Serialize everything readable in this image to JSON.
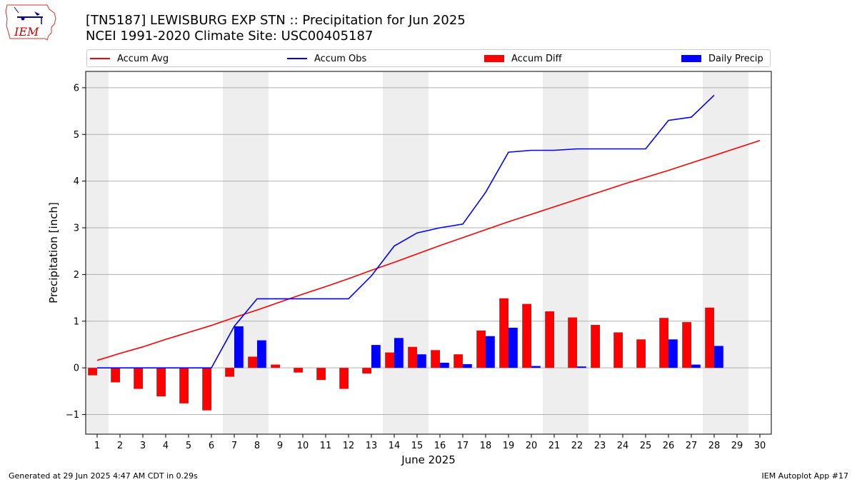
{
  "header": {
    "title_line1": "[TN5187] LEWISBURG EXP STN :: Precipitation for Jun 2025",
    "title_line2": "NCEI 1991-2020 Climate Site: USC00405187"
  },
  "logo": {
    "text": "IEM"
  },
  "footer": {
    "left": "Generated at 29 Jun 2025 4:47 AM CDT in 0.29s",
    "right": "IEM Autoplot App #17"
  },
  "colors": {
    "avg": "#ff0000",
    "obs": "#0000ff",
    "diff": "#ff0000",
    "daily": "#0000ff",
    "weekend_shade": "#eeeeee",
    "grid": "#b0b0b0"
  },
  "chart_data": {
    "type": "bar",
    "xlabel": "June 2025",
    "ylabel": "Precipitation [inch]",
    "ylim": [
      -1.42,
      6.35
    ],
    "xlim": [
      0.5,
      30.5
    ],
    "yticks": [
      -1,
      0,
      1,
      2,
      3,
      4,
      5,
      6
    ],
    "ytick_labels": [
      "−1",
      "0",
      "1",
      "2",
      "3",
      "4",
      "5",
      "6"
    ],
    "days": [
      1,
      2,
      3,
      4,
      5,
      6,
      7,
      8,
      9,
      10,
      11,
      12,
      13,
      14,
      15,
      16,
      17,
      18,
      19,
      20,
      21,
      22,
      23,
      24,
      25,
      26,
      27,
      28,
      29,
      30
    ],
    "shaded_ranges": [
      [
        0.5,
        1.5
      ],
      [
        6.5,
        8.5
      ],
      [
        13.5,
        15.5
      ],
      [
        20.5,
        22.5
      ],
      [
        27.5,
        29.5
      ]
    ],
    "grid": "horizontal",
    "legend_placement": "top",
    "legend": [
      "Accum Avg",
      "Accum Obs",
      "Accum Diff",
      "Daily Precip"
    ],
    "series": [
      {
        "name": "Accum Avg",
        "kind": "line",
        "x": [
          1,
          2,
          3,
          4,
          5,
          6,
          7,
          8,
          9,
          10,
          11,
          12,
          13,
          14,
          15,
          16,
          17,
          18,
          19,
          20,
          21,
          22,
          23,
          24,
          25,
          26,
          27,
          28,
          29,
          30
        ],
        "values": [
          0.16,
          0.31,
          0.45,
          0.61,
          0.76,
          0.91,
          1.08,
          1.24,
          1.41,
          1.58,
          1.74,
          1.91,
          2.09,
          2.26,
          2.44,
          2.62,
          2.79,
          2.96,
          3.13,
          3.29,
          3.45,
          3.61,
          3.77,
          3.93,
          4.08,
          4.23,
          4.39,
          4.55,
          4.71,
          4.87
        ]
      },
      {
        "name": "Accum Obs",
        "kind": "line",
        "x": [
          1,
          2,
          3,
          4,
          5,
          6,
          7,
          8,
          9,
          10,
          11,
          12,
          13,
          14,
          15,
          16,
          17,
          18,
          19,
          20,
          21,
          22,
          23,
          24,
          25,
          26,
          27,
          28
        ],
        "values": [
          0.0,
          0.0,
          0.0,
          0.0,
          0.0,
          0.0,
          0.89,
          1.48,
          1.48,
          1.48,
          1.48,
          1.48,
          1.97,
          2.61,
          2.89,
          3.0,
          3.08,
          3.76,
          4.62,
          4.66,
          4.66,
          4.69,
          4.69,
          4.69,
          4.69,
          5.3,
          5.37,
          5.84
        ]
      },
      {
        "name": "Accum Diff",
        "kind": "bar",
        "x": [
          1,
          2,
          3,
          4,
          5,
          6,
          7,
          8,
          9,
          10,
          11,
          12,
          13,
          14,
          15,
          16,
          17,
          18,
          19,
          20,
          21,
          22,
          23,
          24,
          25,
          26,
          27,
          28
        ],
        "values": [
          -0.16,
          -0.31,
          -0.45,
          -0.61,
          -0.76,
          -0.91,
          -0.19,
          0.24,
          0.07,
          -0.1,
          -0.26,
          -0.45,
          -0.12,
          0.33,
          0.45,
          0.38,
          0.29,
          0.8,
          1.49,
          1.37,
          1.21,
          1.08,
          0.92,
          0.76,
          0.61,
          1.07,
          0.98,
          1.29
        ]
      },
      {
        "name": "Daily Precip",
        "kind": "bar",
        "x": [
          1,
          2,
          3,
          4,
          5,
          6,
          7,
          8,
          9,
          10,
          11,
          12,
          13,
          14,
          15,
          16,
          17,
          18,
          19,
          20,
          21,
          22,
          23,
          24,
          25,
          26,
          27,
          28
        ],
        "values": [
          0,
          0,
          0,
          0,
          0,
          0,
          0.89,
          0.59,
          0,
          0,
          0,
          0,
          0.49,
          0.64,
          0.29,
          0.11,
          0.08,
          0.68,
          0.86,
          0.04,
          0,
          0.03,
          0,
          0,
          0,
          0.61,
          0.07,
          0.47
        ]
      }
    ]
  }
}
